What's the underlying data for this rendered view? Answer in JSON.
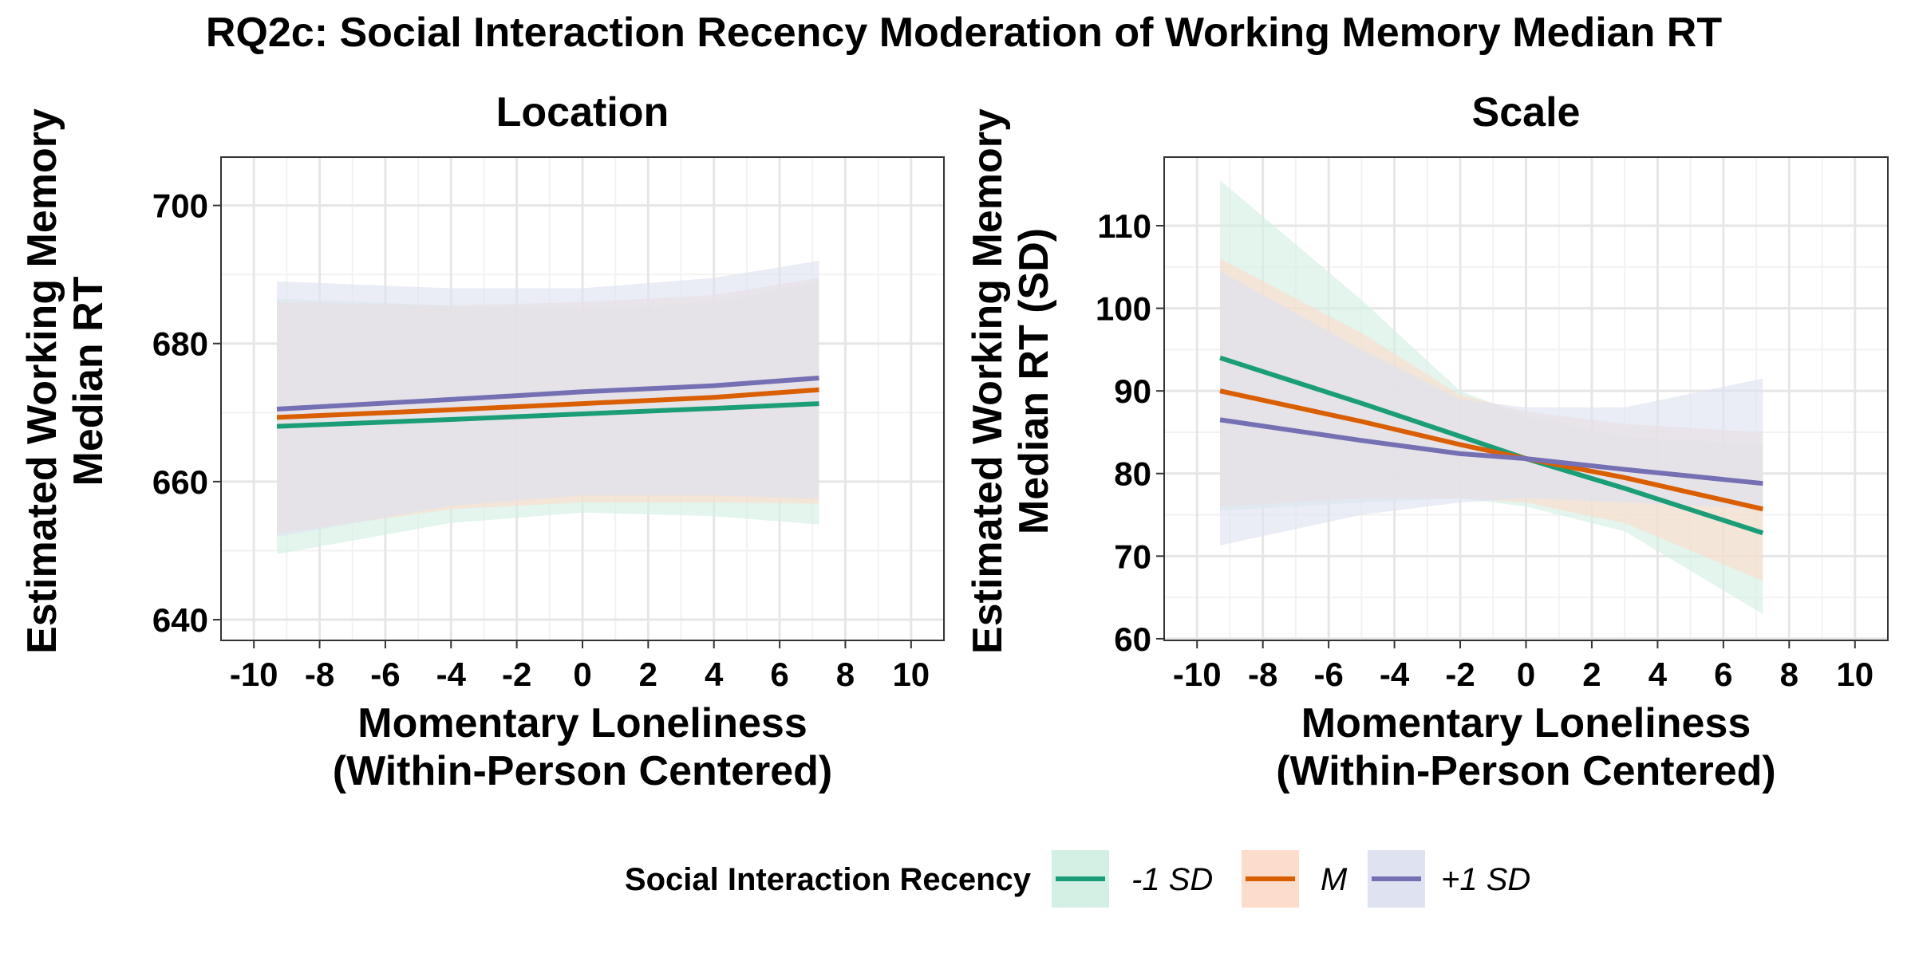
{
  "title": "RQ2c: Social Interaction Recency Moderation of Working Memory Median RT",
  "legend": {
    "title": "Social Interaction Recency",
    "items": [
      {
        "label": "-1 SD",
        "line_color": "#1B9E77",
        "band_color": "#D4EFE4"
      },
      {
        "label": "M",
        "line_color": "#D95F02",
        "band_color": "#FCDCCB"
      },
      {
        "label": "+1 SD",
        "line_color": "#7570B3",
        "band_color": "#DEE2F1"
      }
    ]
  },
  "chart_data": [
    {
      "type": "line",
      "title": "Location",
      "xlabel": [
        "Momentary Loneliness",
        "(Within-Person Centered)"
      ],
      "ylabel": [
        "Estimated Working Memory",
        "Median RT"
      ],
      "xlim": [
        -11,
        11
      ],
      "ylim": [
        637,
        707
      ],
      "xticks": [
        -10,
        -8,
        -6,
        -4,
        -2,
        0,
        2,
        4,
        6,
        8,
        10
      ],
      "yticks": [
        640,
        660,
        680,
        700
      ],
      "grid": true,
      "x": [
        -9.3,
        -4,
        0,
        4,
        7.2
      ],
      "series": [
        {
          "name": "-1 SD",
          "color": "#1B9E77",
          "band_color": "#D4EFE4",
          "values": [
            668.0,
            669.0,
            669.8,
            670.6,
            671.3
          ],
          "lower": [
            649.5,
            654.0,
            655.5,
            655.0,
            653.8
          ],
          "upper": [
            686.5,
            685.5,
            685.0,
            686.0,
            689.0
          ]
        },
        {
          "name": "M",
          "color": "#D95F02",
          "band_color": "#FCDCCB",
          "values": [
            669.3,
            670.4,
            671.3,
            672.2,
            673.3
          ],
          "lower": [
            652.5,
            656.0,
            657.0,
            657.0,
            656.8
          ],
          "upper": [
            686.0,
            685.5,
            686.0,
            687.0,
            689.5
          ]
        },
        {
          "name": "+1 SD",
          "color": "#7570B3",
          "band_color": "#DEE2F1",
          "values": [
            670.5,
            671.9,
            673.0,
            673.9,
            675.0
          ],
          "lower": [
            652.0,
            656.5,
            658.0,
            658.0,
            657.5
          ],
          "upper": [
            689.0,
            688.0,
            688.0,
            689.5,
            692.0
          ]
        }
      ]
    },
    {
      "type": "line",
      "title": "Scale",
      "xlabel": [
        "Momentary Loneliness",
        "(Within-Person Centered)"
      ],
      "ylabel": [
        "Estimated Working Memory",
        "Median RT (SD)"
      ],
      "xlim": [
        -11,
        11
      ],
      "ylim": [
        59.8,
        118.3
      ],
      "xticks": [
        -10,
        -8,
        -6,
        -4,
        -2,
        0,
        2,
        4,
        6,
        8,
        10
      ],
      "yticks": [
        60,
        70,
        80,
        90,
        100,
        110
      ],
      "grid": true,
      "x": [
        -9.3,
        -5,
        -2,
        0,
        3,
        7.2
      ],
      "series": [
        {
          "name": "-1 SD",
          "color": "#1B9E77",
          "band_color": "#D4EFE4",
          "values": [
            94.0,
            88.5,
            84.5,
            81.8,
            78.2,
            72.8
          ],
          "lower": [
            75.5,
            76.5,
            77.0,
            76.0,
            73.0,
            63.0
          ],
          "upper": [
            115.5,
            101.0,
            90.0,
            87.0,
            84.5,
            83.5
          ]
        },
        {
          "name": "M",
          "color": "#D95F02",
          "band_color": "#FCDCCB",
          "values": [
            90.0,
            86.3,
            83.5,
            81.8,
            79.5,
            75.7
          ],
          "lower": [
            76.0,
            77.0,
            77.0,
            76.5,
            74.0,
            67.0
          ],
          "upper": [
            106.0,
            97.0,
            89.5,
            87.5,
            86.0,
            85.0
          ]
        },
        {
          "name": "+1 SD",
          "color": "#7570B3",
          "band_color": "#DEE2F1",
          "values": [
            86.5,
            84.0,
            82.4,
            81.8,
            80.5,
            78.8
          ],
          "lower": [
            71.3,
            75.0,
            76.5,
            77.0,
            76.5,
            75.7
          ],
          "upper": [
            104.5,
            95.0,
            89.0,
            88.0,
            88.0,
            91.5
          ]
        }
      ]
    }
  ]
}
